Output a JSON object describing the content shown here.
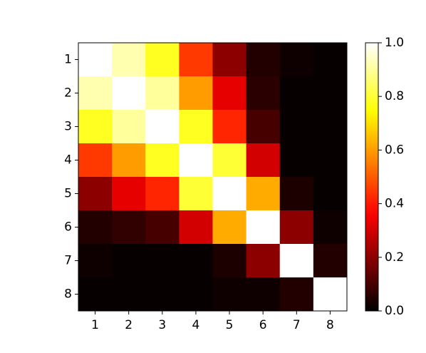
{
  "chart_data": {
    "type": "heatmap",
    "colormap": "hot",
    "x_categories": [
      "1",
      "2",
      "3",
      "4",
      "5",
      "6",
      "7",
      "8"
    ],
    "y_categories": [
      "1",
      "2",
      "3",
      "4",
      "5",
      "6",
      "7",
      "8"
    ],
    "z": [
      [
        1.0,
        0.92,
        0.78,
        0.45,
        0.2,
        0.05,
        0.02,
        0.01
      ],
      [
        0.92,
        1.0,
        0.9,
        0.6,
        0.33,
        0.06,
        0.01,
        0.01
      ],
      [
        0.78,
        0.9,
        1.0,
        0.78,
        0.42,
        0.1,
        0.01,
        0.01
      ],
      [
        0.45,
        0.6,
        0.78,
        1.0,
        0.8,
        0.3,
        0.01,
        0.01
      ],
      [
        0.2,
        0.33,
        0.42,
        0.8,
        1.0,
        0.62,
        0.04,
        0.01
      ],
      [
        0.05,
        0.07,
        0.1,
        0.3,
        0.62,
        1.0,
        0.2,
        0.02
      ],
      [
        0.02,
        0.01,
        0.01,
        0.01,
        0.04,
        0.2,
        1.0,
        0.05
      ],
      [
        0.01,
        0.01,
        0.01,
        0.01,
        0.02,
        0.02,
        0.05,
        1.0
      ]
    ],
    "clim": [
      0,
      1
    ],
    "cticks": [
      {
        "value": 0,
        "label": "0.0"
      },
      {
        "value": 0.2,
        "label": "0.2"
      },
      {
        "value": 0.4,
        "label": "0.4"
      },
      {
        "value": 0.6,
        "label": "0.6"
      },
      {
        "value": 0.8,
        "label": "0.8"
      },
      {
        "value": 1,
        "label": "1.0"
      }
    ]
  }
}
